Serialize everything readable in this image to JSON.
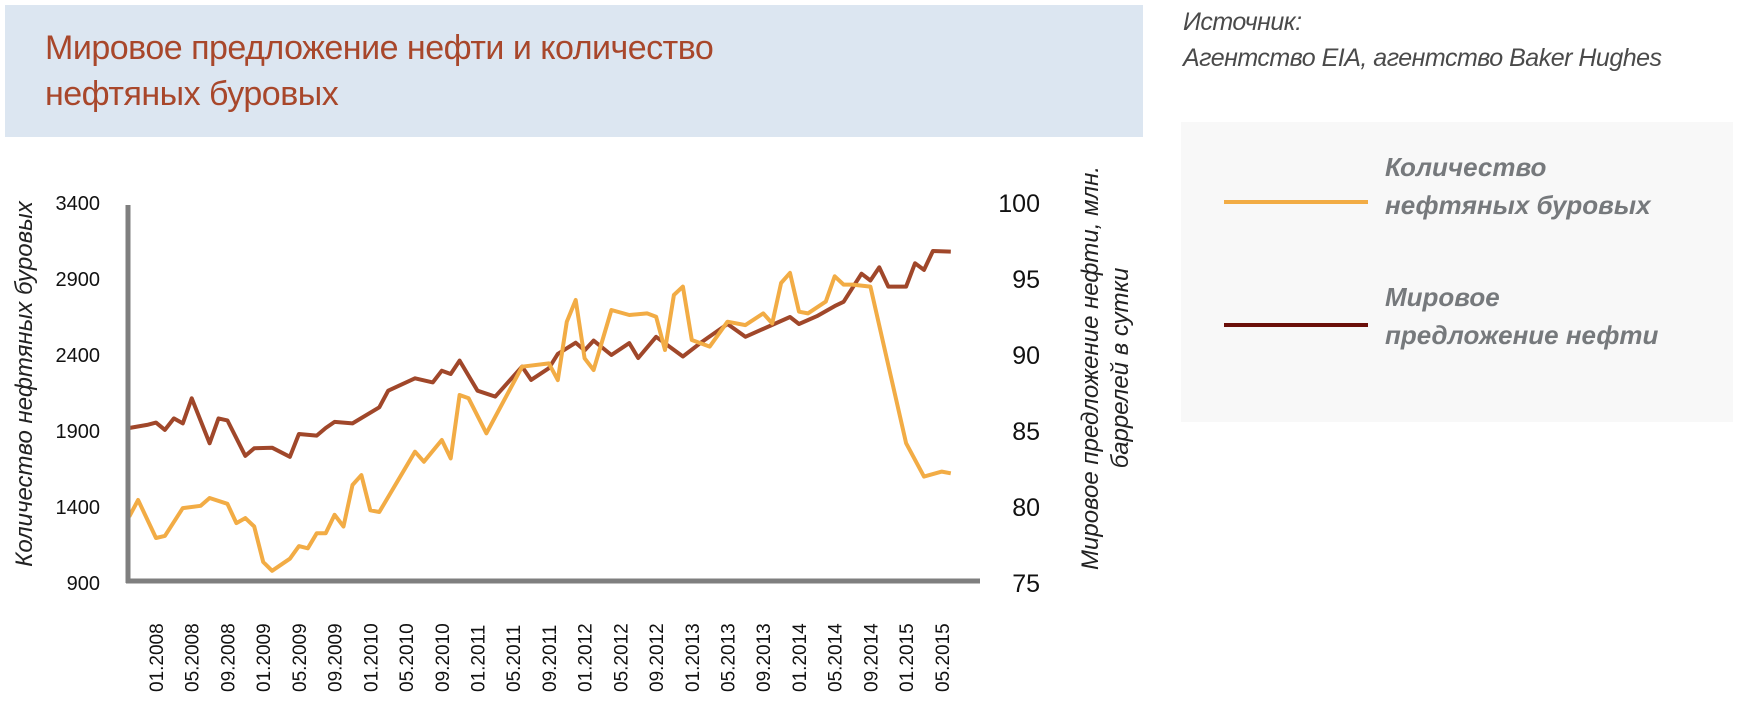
{
  "header": {
    "title_line1": "Мировое предложение нефти и количество",
    "title_line2": "нефтяных буровых",
    "source_label": "Источник:",
    "source_text": "Агентство EIA, агентство Baker Hughes"
  },
  "legend": {
    "items": [
      {
        "label_line1": "Количество",
        "label_line2": "нефтяных буровых",
        "color": "#f2ac45"
      },
      {
        "label_line1": "Мировое",
        "label_line2": "предложение нефти",
        "color": "#6b0f0a"
      }
    ]
  },
  "chart_data": {
    "type": "line",
    "title": "Мировое предложение нефти и количество нефтяных буровых",
    "ylabel_left": "Количество нефтяных буровых",
    "ylabel_right_line1": "Мировое предложение нефти, млн.",
    "ylabel_right_line2": "баррелей в сутки",
    "ylim_left": [
      900,
      3400
    ],
    "yticks_left": [
      "3400",
      "2900",
      "2400",
      "1900",
      "1400",
      "900"
    ],
    "ylim_right": [
      75,
      100
    ],
    "yticks_right": [
      "100",
      "95",
      "90",
      "85",
      "80",
      "75"
    ],
    "xticks": [
      "01.2008",
      "05.2008",
      "09.2008",
      "01.2009",
      "05.2009",
      "09.2009",
      "01.2010",
      "05.2010",
      "09.2010",
      "01.2011",
      "05.2011",
      "09.2011",
      "01.2012",
      "05.2012",
      "09.2012",
      "01.2013",
      "05.2013",
      "09.2013",
      "01.2014",
      "05.2014",
      "09.2014",
      "01.2015",
      "05.2015"
    ],
    "grid": false,
    "legend_position": "right",
    "series": [
      {
        "name": "Количество нефтяных буровых",
        "axis": "left",
        "color": "#f2ac45",
        "points": [
          [
            "10.2007",
            1336
          ],
          [
            "11.2007",
            1446
          ],
          [
            "01.2008",
            1196
          ],
          [
            "02.2008",
            1210
          ],
          [
            "04.2008",
            1393
          ],
          [
            "06.2008",
            1408
          ],
          [
            "07.2008",
            1459
          ],
          [
            "09.2008",
            1421
          ],
          [
            "10.2008",
            1294
          ],
          [
            "11.2008",
            1327
          ],
          [
            "12.2008",
            1272
          ],
          [
            "01.2009",
            1038
          ],
          [
            "02.2009",
            980
          ],
          [
            "04.2009",
            1060
          ],
          [
            "05.2009",
            1143
          ],
          [
            "06.2009",
            1128
          ],
          [
            "07.2009",
            1227
          ],
          [
            "08.2009",
            1227
          ],
          [
            "09.2009",
            1349
          ],
          [
            "10.2009",
            1272
          ],
          [
            "11.2009",
            1545
          ],
          [
            "12.2009",
            1610
          ],
          [
            "01.2010",
            1378
          ],
          [
            "02.2010",
            1367
          ],
          [
            "06.2010",
            1764
          ],
          [
            "07.2010",
            1698
          ],
          [
            "09.2010",
            1841
          ],
          [
            "10.2010",
            1720
          ],
          [
            "11.2010",
            2137
          ],
          [
            "12.2010",
            2115
          ],
          [
            "02.2011",
            1885
          ],
          [
            "06.2011",
            2323
          ],
          [
            "09.2011",
            2345
          ],
          [
            "10.2011",
            2235
          ],
          [
            "11.2011",
            2619
          ],
          [
            "12.2011",
            2762
          ],
          [
            "01.2012",
            2378
          ],
          [
            "02.2012",
            2301
          ],
          [
            "04.2012",
            2696
          ],
          [
            "06.2012",
            2663
          ],
          [
            "08.2012",
            2674
          ],
          [
            "09.2012",
            2652
          ],
          [
            "10.2012",
            2433
          ],
          [
            "11.2012",
            2795
          ],
          [
            "12.2012",
            2850
          ],
          [
            "01.2013",
            2499
          ],
          [
            "03.2013",
            2455
          ],
          [
            "05.2013",
            2619
          ],
          [
            "07.2013",
            2597
          ],
          [
            "09.2013",
            2674
          ],
          [
            "10.2013",
            2608
          ],
          [
            "11.2013",
            2874
          ],
          [
            "12.2013",
            2940
          ],
          [
            "01.2014",
            2685
          ],
          [
            "02.2014",
            2674
          ],
          [
            "04.2014",
            2751
          ],
          [
            "05.2014",
            2918
          ],
          [
            "06.2014",
            2863
          ],
          [
            "07.2014",
            2863
          ],
          [
            "09.2014",
            2850
          ],
          [
            "01.2015",
            1820
          ],
          [
            "03.2015",
            1600
          ],
          [
            "05.2015",
            1633
          ],
          [
            "06.2015",
            1622
          ]
        ]
      },
      {
        "name": "Мировое предложение нефти",
        "axis": "right",
        "color": "#a0472a",
        "points": [
          [
            "10.2007",
            85.2
          ],
          [
            "12.2007",
            85.4
          ],
          [
            "01.2008",
            85.55
          ],
          [
            "02.2008",
            85.07
          ],
          [
            "03.2008",
            85.83
          ],
          [
            "04.2008",
            85.5
          ],
          [
            "05.2008",
            87.15
          ],
          [
            "07.2008",
            84.19
          ],
          [
            "08.2008",
            85.83
          ],
          [
            "09.2008",
            85.7
          ],
          [
            "11.2008",
            83.36
          ],
          [
            "12.2008",
            83.86
          ],
          [
            "02.2009",
            83.9
          ],
          [
            "04.2009",
            83.3
          ],
          [
            "05.2009",
            84.8
          ],
          [
            "07.2009",
            84.7
          ],
          [
            "08.2009",
            85.2
          ],
          [
            "09.2009",
            85.6
          ],
          [
            "11.2009",
            85.5
          ],
          [
            "02.2010",
            86.56
          ],
          [
            "03.2010",
            87.65
          ],
          [
            "06.2010",
            88.47
          ],
          [
            "08.2010",
            88.2
          ],
          [
            "09.2010",
            88.97
          ],
          [
            "10.2010",
            88.75
          ],
          [
            "11.2010",
            89.63
          ],
          [
            "01.2011",
            87.65
          ],
          [
            "03.2011",
            87.26
          ],
          [
            "06.2011",
            89.24
          ],
          [
            "07.2011",
            88.36
          ],
          [
            "09.2011",
            89.13
          ],
          [
            "10.2011",
            90.07
          ],
          [
            "12.2011",
            90.81
          ],
          [
            "01.2012",
            90.3
          ],
          [
            "02.2012",
            90.95
          ],
          [
            "04.2012",
            90.0
          ],
          [
            "06.2012",
            90.78
          ],
          [
            "07.2012",
            89.8
          ],
          [
            "09.2012",
            91.2
          ],
          [
            "12.2012",
            89.9
          ],
          [
            "02.2013",
            90.8
          ],
          [
            "05.2013",
            92.04
          ],
          [
            "07.2013",
            91.2
          ],
          [
            "12.2013",
            92.5
          ],
          [
            "01.2014",
            92.04
          ],
          [
            "03.2014",
            92.55
          ],
          [
            "05.2014",
            93.22
          ],
          [
            "06.2014",
            93.5
          ],
          [
            "08.2014",
            95.35
          ],
          [
            "09.2014",
            94.9
          ],
          [
            "10.2014",
            95.77
          ],
          [
            "11.2014",
            94.5
          ],
          [
            "01.2015",
            94.5
          ],
          [
            "02.2015",
            96.03
          ],
          [
            "03.2015",
            95.6
          ],
          [
            "04.2015",
            96.84
          ],
          [
            "06.2015",
            96.8
          ]
        ]
      }
    ]
  }
}
